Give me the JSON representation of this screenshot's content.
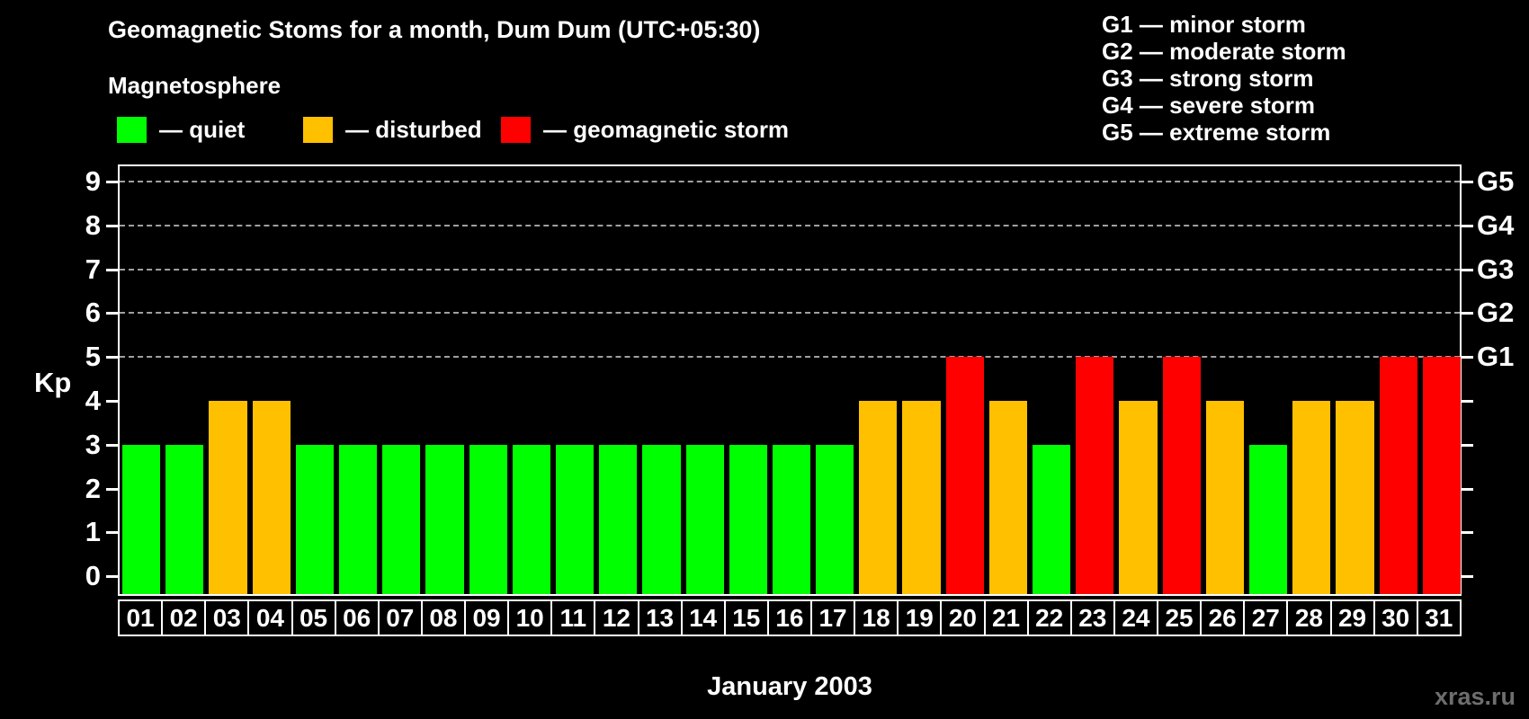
{
  "title": "Geomagnetic Stoms for a month, Dum Dum (UTC+05:30)",
  "watermark": "xras.ru",
  "magnetosphere_legend": {
    "heading": "Magnetosphere",
    "items": [
      {
        "name": "quiet",
        "label": "— quiet",
        "color": "#00ff00"
      },
      {
        "name": "disturbed",
        "label": "— disturbed",
        "color": "#ffc000"
      },
      {
        "name": "storm",
        "label": "— geomagnetic storm",
        "color": "#ff0000"
      }
    ]
  },
  "g_scale_legend": [
    "G1 — minor storm",
    "G2 — moderate storm",
    "G3 — strong storm",
    "G4 — severe storm",
    "G5 — extreme storm"
  ],
  "chart_data": {
    "type": "bar",
    "title": "Geomagnetic Stoms for a month, Dum Dum (UTC+05:30)",
    "xlabel": "January 2003",
    "ylabel": "Kp",
    "ylim": [
      0,
      9
    ],
    "yticks": [
      0,
      1,
      2,
      3,
      4,
      5,
      6,
      7,
      8,
      9
    ],
    "gridline_levels": [
      5,
      6,
      7,
      8,
      9
    ],
    "grid_style": "horizontal dashed gray at G-storm levels",
    "legend_position": "top",
    "right_axis": [
      {
        "level": 5,
        "label": "G1"
      },
      {
        "level": 6,
        "label": "G2"
      },
      {
        "level": 7,
        "label": "G3"
      },
      {
        "level": 8,
        "label": "G4"
      },
      {
        "level": 9,
        "label": "G5"
      }
    ],
    "categories": [
      "01",
      "02",
      "03",
      "04",
      "05",
      "06",
      "07",
      "08",
      "09",
      "10",
      "11",
      "12",
      "13",
      "14",
      "15",
      "16",
      "17",
      "18",
      "19",
      "20",
      "21",
      "22",
      "23",
      "24",
      "25",
      "26",
      "27",
      "28",
      "29",
      "30",
      "31"
    ],
    "values": [
      3,
      3,
      4,
      4,
      3,
      3,
      3,
      3,
      3,
      3,
      3,
      3,
      3,
      3,
      3,
      3,
      3,
      4,
      4,
      5,
      4,
      3,
      5,
      4,
      5,
      4,
      3,
      4,
      4,
      5,
      5
    ],
    "statuses": [
      "quiet",
      "quiet",
      "disturbed",
      "disturbed",
      "quiet",
      "quiet",
      "quiet",
      "quiet",
      "quiet",
      "quiet",
      "quiet",
      "quiet",
      "quiet",
      "quiet",
      "quiet",
      "quiet",
      "quiet",
      "disturbed",
      "disturbed",
      "storm",
      "disturbed",
      "quiet",
      "storm",
      "disturbed",
      "storm",
      "disturbed",
      "quiet",
      "disturbed",
      "disturbed",
      "storm",
      "storm"
    ],
    "status_colors": {
      "quiet": "#00ff00",
      "disturbed": "#ffc000",
      "storm": "#ff0000"
    }
  },
  "colors": {
    "background": "#000000",
    "axis": "#ffffff",
    "gridline": "#a0a0a0",
    "text": "#ffffff",
    "watermark": "#6e6e6e"
  }
}
